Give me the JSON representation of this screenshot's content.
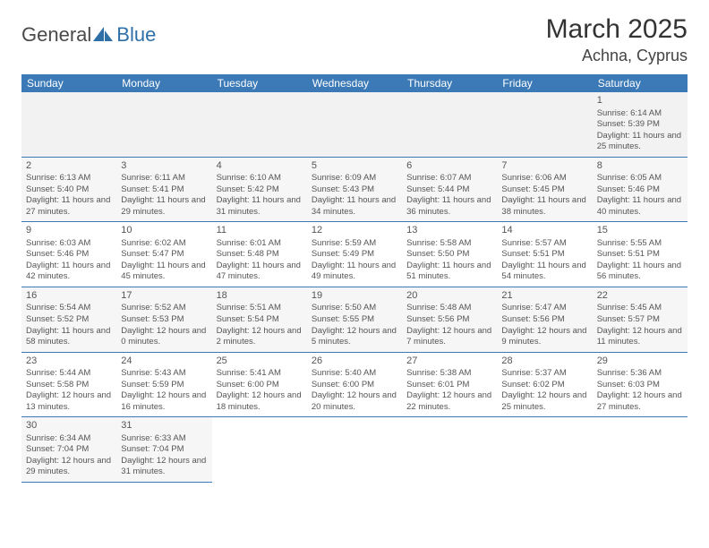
{
  "logo": {
    "general": "General",
    "blue": "Blue"
  },
  "title": "March 2025",
  "location": "Achna, Cyprus",
  "colors": {
    "header_bg": "#3b7ab6",
    "header_text": "#ffffff",
    "cell_border": "#3b7ab6",
    "alt_row_bg": "#f6f6f6",
    "blank_bg": "#f2f2f2",
    "text": "#555555",
    "logo_blue": "#2f6fa8"
  },
  "typography": {
    "title_fontsize": 30,
    "location_fontsize": 18,
    "dayheader_fontsize": 12,
    "daynum_fontsize": 11,
    "cell_fontsize": 9.5
  },
  "day_headers": [
    "Sunday",
    "Monday",
    "Tuesday",
    "Wednesday",
    "Thursday",
    "Friday",
    "Saturday"
  ],
  "weeks": [
    [
      null,
      null,
      null,
      null,
      null,
      null,
      {
        "n": "1",
        "sunrise": "6:14 AM",
        "sunset": "5:39 PM",
        "daylight": "11 hours and 25 minutes."
      }
    ],
    [
      {
        "n": "2",
        "sunrise": "6:13 AM",
        "sunset": "5:40 PM",
        "daylight": "11 hours and 27 minutes."
      },
      {
        "n": "3",
        "sunrise": "6:11 AM",
        "sunset": "5:41 PM",
        "daylight": "11 hours and 29 minutes."
      },
      {
        "n": "4",
        "sunrise": "6:10 AM",
        "sunset": "5:42 PM",
        "daylight": "11 hours and 31 minutes."
      },
      {
        "n": "5",
        "sunrise": "6:09 AM",
        "sunset": "5:43 PM",
        "daylight": "11 hours and 34 minutes."
      },
      {
        "n": "6",
        "sunrise": "6:07 AM",
        "sunset": "5:44 PM",
        "daylight": "11 hours and 36 minutes."
      },
      {
        "n": "7",
        "sunrise": "6:06 AM",
        "sunset": "5:45 PM",
        "daylight": "11 hours and 38 minutes."
      },
      {
        "n": "8",
        "sunrise": "6:05 AM",
        "sunset": "5:46 PM",
        "daylight": "11 hours and 40 minutes."
      }
    ],
    [
      {
        "n": "9",
        "sunrise": "6:03 AM",
        "sunset": "5:46 PM",
        "daylight": "11 hours and 42 minutes."
      },
      {
        "n": "10",
        "sunrise": "6:02 AM",
        "sunset": "5:47 PM",
        "daylight": "11 hours and 45 minutes."
      },
      {
        "n": "11",
        "sunrise": "6:01 AM",
        "sunset": "5:48 PM",
        "daylight": "11 hours and 47 minutes."
      },
      {
        "n": "12",
        "sunrise": "5:59 AM",
        "sunset": "5:49 PM",
        "daylight": "11 hours and 49 minutes."
      },
      {
        "n": "13",
        "sunrise": "5:58 AM",
        "sunset": "5:50 PM",
        "daylight": "11 hours and 51 minutes."
      },
      {
        "n": "14",
        "sunrise": "5:57 AM",
        "sunset": "5:51 PM",
        "daylight": "11 hours and 54 minutes."
      },
      {
        "n": "15",
        "sunrise": "5:55 AM",
        "sunset": "5:51 PM",
        "daylight": "11 hours and 56 minutes."
      }
    ],
    [
      {
        "n": "16",
        "sunrise": "5:54 AM",
        "sunset": "5:52 PM",
        "daylight": "11 hours and 58 minutes."
      },
      {
        "n": "17",
        "sunrise": "5:52 AM",
        "sunset": "5:53 PM",
        "daylight": "12 hours and 0 minutes."
      },
      {
        "n": "18",
        "sunrise": "5:51 AM",
        "sunset": "5:54 PM",
        "daylight": "12 hours and 2 minutes."
      },
      {
        "n": "19",
        "sunrise": "5:50 AM",
        "sunset": "5:55 PM",
        "daylight": "12 hours and 5 minutes."
      },
      {
        "n": "20",
        "sunrise": "5:48 AM",
        "sunset": "5:56 PM",
        "daylight": "12 hours and 7 minutes."
      },
      {
        "n": "21",
        "sunrise": "5:47 AM",
        "sunset": "5:56 PM",
        "daylight": "12 hours and 9 minutes."
      },
      {
        "n": "22",
        "sunrise": "5:45 AM",
        "sunset": "5:57 PM",
        "daylight": "12 hours and 11 minutes."
      }
    ],
    [
      {
        "n": "23",
        "sunrise": "5:44 AM",
        "sunset": "5:58 PM",
        "daylight": "12 hours and 13 minutes."
      },
      {
        "n": "24",
        "sunrise": "5:43 AM",
        "sunset": "5:59 PM",
        "daylight": "12 hours and 16 minutes."
      },
      {
        "n": "25",
        "sunrise": "5:41 AM",
        "sunset": "6:00 PM",
        "daylight": "12 hours and 18 minutes."
      },
      {
        "n": "26",
        "sunrise": "5:40 AM",
        "sunset": "6:00 PM",
        "daylight": "12 hours and 20 minutes."
      },
      {
        "n": "27",
        "sunrise": "5:38 AM",
        "sunset": "6:01 PM",
        "daylight": "12 hours and 22 minutes."
      },
      {
        "n": "28",
        "sunrise": "5:37 AM",
        "sunset": "6:02 PM",
        "daylight": "12 hours and 25 minutes."
      },
      {
        "n": "29",
        "sunrise": "5:36 AM",
        "sunset": "6:03 PM",
        "daylight": "12 hours and 27 minutes."
      }
    ],
    [
      {
        "n": "30",
        "sunrise": "6:34 AM",
        "sunset": "7:04 PM",
        "daylight": "12 hours and 29 minutes."
      },
      {
        "n": "31",
        "sunrise": "6:33 AM",
        "sunset": "7:04 PM",
        "daylight": "12 hours and 31 minutes."
      },
      null,
      null,
      null,
      null,
      null
    ]
  ],
  "labels": {
    "sunrise": "Sunrise:",
    "sunset": "Sunset:",
    "daylight": "Daylight:"
  }
}
